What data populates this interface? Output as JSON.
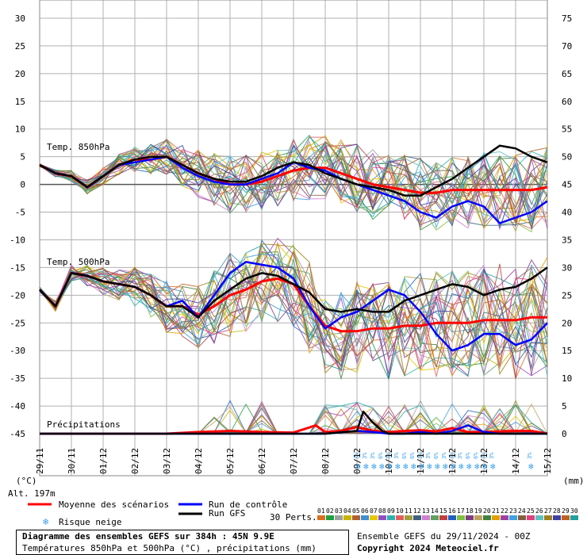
{
  "chart_data": {
    "type": "line",
    "title": "Diagramme des ensembles GEFS sur 384h : 45N 9.9E",
    "subtitle": "Températures 850hPa et 500hPa (°C) , précipitations (mm)",
    "run_info": "Ensemble GEFS du 29/11/2024 - 00Z",
    "copyright": "Copyright 2024 Meteociel.fr",
    "altitude": "Alt. 197m",
    "left_unit": "(°C)",
    "right_unit": "(mm)",
    "left_ticks": [
      30,
      25,
      20,
      15,
      10,
      5,
      0,
      -5,
      -10,
      -15,
      -20,
      -25,
      -30,
      -35,
      -40,
      -45
    ],
    "right_ticks": [
      75,
      70,
      65,
      60,
      55,
      50,
      45,
      40,
      35,
      30,
      25,
      20,
      15,
      10,
      5,
      0
    ],
    "ylim": [
      -45,
      30
    ],
    "x_dates": [
      "29/11",
      "30/11",
      "01/12",
      "02/12",
      "03/12",
      "04/12",
      "05/12",
      "06/12",
      "07/12",
      "08/12",
      "09/12",
      "10/12",
      "11/12",
      "12/12",
      "13/12",
      "14/12",
      "15/12"
    ],
    "labels": {
      "t850": "Temp. 850hPa",
      "t500": "Temp. 500hPa",
      "precip": "Précipitations"
    },
    "legend": {
      "mean": "Moyenne des scénarios",
      "control": "Run de contrôle",
      "gfs": "Run GFS",
      "snow": "Risque neige",
      "perts": "30 Perts.",
      "pert_numbers": [
        "01",
        "02",
        "03",
        "04",
        "05",
        "06",
        "07",
        "08",
        "09",
        "10",
        "11",
        "12",
        "13",
        "14",
        "15",
        "16",
        "17",
        "18",
        "19",
        "20",
        "21",
        "22",
        "23",
        "24",
        "25",
        "26",
        "27",
        "28",
        "29",
        "30"
      ],
      "mean_color": "#ff0000",
      "control_color": "#0000ff",
      "gfs_color": "#000000",
      "snow_color": "#3aa0e8"
    },
    "pert_colors": [
      "#d87020",
      "#20a040",
      "#a0a0a0",
      "#c8b400",
      "#b06030",
      "#4090d0",
      "#e8c800",
      "#9050c0",
      "#30b0b0",
      "#e06060",
      "#a0a040",
      "#406080",
      "#d080d0",
      "#60a060",
      "#c04040",
      "#2060c0",
      "#80c040",
      "#804080",
      "#c0a060",
      "#408040",
      "#e0a000",
      "#a040a0",
      "#40a0e0",
      "#806040",
      "#e04080",
      "#60c0c0",
      "#a08020",
      "#4040a0",
      "#c06020",
      "#20a0a0"
    ],
    "snow_markers": {
      "day_labels": [
        "3%",
        "3%",
        "3%",
        "6%",
        "3%",
        "3%",
        "6%",
        "6%",
        "3%",
        "3%",
        "6%",
        "3%",
        "3%",
        "3%",
        "6%",
        "6%",
        "3%",
        "3%"
      ],
      "day_positions": [
        10.1,
        10.35,
        10.6,
        10.85,
        11.1,
        11.35,
        11.6,
        11.85,
        12.1,
        12.35,
        12.6,
        12.85,
        13.1,
        13.35,
        13.6,
        13.85,
        14.1,
        14.35
      ],
      "late_label": "3%",
      "late_position": 15.55
    },
    "series": [
      {
        "name": "Moyenne des scénarios",
        "group": "850hPa",
        "x": [
          0,
          0.5,
          1,
          1.5,
          2,
          2.5,
          3,
          3.5,
          4,
          4.5,
          5,
          5.5,
          6,
          6.5,
          7,
          7.5,
          8,
          8.5,
          9,
          9.5,
          10,
          10.5,
          11,
          11.5,
          12,
          12.5,
          13,
          13.5,
          14,
          14.5,
          15,
          15.5,
          16
        ],
        "values": [
          3.5,
          2,
          1.5,
          -0.5,
          1.5,
          3.5,
          4.5,
          4.5,
          5,
          3.5,
          2,
          1,
          0,
          0,
          0.5,
          1.5,
          2.5,
          3,
          3,
          2,
          1,
          0,
          -0.5,
          -1,
          -1.5,
          -1.5,
          -1,
          -1,
          -1,
          -1,
          -1,
          -1,
          -0.5
        ]
      },
      {
        "name": "Run de contrôle",
        "group": "850hPa",
        "x": [
          0,
          0.5,
          1,
          1.5,
          2,
          2.5,
          3,
          3.5,
          4,
          4.5,
          5,
          5.5,
          6,
          6.5,
          7,
          7.5,
          8,
          8.5,
          9,
          9.5,
          10,
          10.5,
          11,
          11.5,
          12,
          12.5,
          13,
          13.5,
          14,
          14.5,
          15,
          15.5,
          16
        ],
        "values": [
          3.5,
          2,
          1.5,
          -0.5,
          1.5,
          3.5,
          4,
          4.5,
          5,
          3,
          1.5,
          0.5,
          0,
          0,
          1,
          2,
          4,
          3,
          2.5,
          1,
          0,
          -1,
          -2,
          -3,
          -5,
          -6,
          -4,
          -3,
          -4,
          -7,
          -6,
          -5,
          -3
        ]
      },
      {
        "name": "Run GFS",
        "group": "850hPa",
        "x": [
          0,
          0.5,
          1,
          1.5,
          2,
          2.5,
          3,
          3.5,
          4,
          4.5,
          5,
          5.5,
          6,
          6.5,
          7,
          7.5,
          8,
          8.5,
          9,
          9.5,
          10,
          10.5,
          11,
          11.5,
          12,
          12.5,
          13,
          13.5,
          14,
          14.5,
          15,
          15.5,
          16
        ],
        "values": [
          3.5,
          2,
          1.5,
          -0.5,
          1.5,
          3.5,
          4.5,
          5,
          5,
          3.5,
          2,
          1,
          0.5,
          0.5,
          1.5,
          3,
          4,
          3.5,
          2,
          1,
          0,
          -0.5,
          -1,
          -2,
          -2,
          -0.5,
          1,
          3,
          5,
          7,
          6.5,
          5,
          4
        ]
      },
      {
        "name": "Moyenne des scénarios",
        "group": "500hPa",
        "x": [
          0,
          0.5,
          1,
          1.5,
          2,
          2.5,
          3,
          3.5,
          4,
          4.5,
          5,
          5.5,
          6,
          6.5,
          7,
          7.5,
          8,
          8.5,
          9,
          9.5,
          10,
          10.5,
          11,
          11.5,
          12,
          12.5,
          13,
          13.5,
          14,
          14.5,
          15,
          15.5,
          16
        ],
        "values": [
          -19,
          -22,
          -16,
          -16.5,
          -17.5,
          -18,
          -18.5,
          -20,
          -22,
          -22,
          -23.5,
          -22,
          -20,
          -19,
          -17.5,
          -17,
          -18,
          -22,
          -25.5,
          -26.5,
          -26.5,
          -26,
          -26,
          -25.5,
          -25.5,
          -25,
          -25,
          -25,
          -24.5,
          -24.5,
          -24.5,
          -24,
          -24
        ]
      },
      {
        "name": "Run de contrôle",
        "group": "500hPa",
        "x": [
          0,
          0.5,
          1,
          1.5,
          2,
          2.5,
          3,
          3.5,
          4,
          4.5,
          5,
          5.5,
          6,
          6.5,
          7,
          7.5,
          8,
          8.5,
          9,
          9.5,
          10,
          10.5,
          11,
          11.5,
          12,
          12.5,
          13,
          13.5,
          14,
          14.5,
          15,
          15.5,
          16
        ],
        "values": [
          -19,
          -22,
          -16,
          -16.5,
          -17.5,
          -18,
          -18.5,
          -20,
          -22,
          -21,
          -24,
          -20,
          -16,
          -14,
          -14.5,
          -15,
          -17,
          -22,
          -26,
          -24,
          -23,
          -21,
          -19,
          -20,
          -23,
          -27,
          -30,
          -29,
          -27,
          -27,
          -29,
          -28,
          -25
        ]
      },
      {
        "name": "Run GFS",
        "group": "500hPa",
        "x": [
          0,
          0.5,
          1,
          1.5,
          2,
          2.5,
          3,
          3.5,
          4,
          4.5,
          5,
          5.5,
          6,
          6.5,
          7,
          7.5,
          8,
          8.5,
          9,
          9.5,
          10,
          10.5,
          11,
          11.5,
          12,
          12.5,
          13,
          13.5,
          14,
          14.5,
          15,
          15.5,
          16
        ],
        "values": [
          -19,
          -22,
          -16,
          -16.5,
          -17.5,
          -18,
          -18.5,
          -20,
          -22,
          -22,
          -24,
          -21,
          -19,
          -17,
          -16,
          -16.5,
          -18,
          -19.5,
          -22.5,
          -23,
          -22.5,
          -23,
          -23,
          -21,
          -20,
          -19,
          -18,
          -18.5,
          -20,
          -19,
          -18.5,
          -17,
          -15
        ]
      },
      {
        "name": "Moyenne des scénarios",
        "group": "precip",
        "x": [
          0,
          1,
          2,
          3,
          4,
          5,
          6,
          7,
          8,
          8.7,
          9,
          9.5,
          10,
          10.5,
          11,
          11.5,
          12,
          12.5,
          13,
          13.5,
          14,
          14.5,
          15,
          15.5,
          16
        ],
        "values": [
          0,
          0,
          0,
          0,
          0,
          0.3,
          0.5,
          0.3,
          0.2,
          1.5,
          0.3,
          0.5,
          1.2,
          0.5,
          0.3,
          0.5,
          0.6,
          0.4,
          1.0,
          0.3,
          0.3,
          0.4,
          0.5,
          0.5,
          0
        ]
      },
      {
        "name": "Run de contrôle",
        "group": "precip",
        "x": [
          0,
          1,
          2,
          3,
          4,
          5,
          6,
          7,
          8,
          9,
          10,
          10.5,
          11,
          11.5,
          12,
          12.5,
          13,
          13.5,
          14,
          14.5,
          15,
          15.5,
          16
        ],
        "values": [
          0,
          0,
          0,
          0,
          0,
          0,
          0,
          0,
          0,
          0,
          0.5,
          0.3,
          0,
          0,
          0.3,
          0,
          0.5,
          1.5,
          0.3,
          0,
          0,
          0,
          0
        ]
      },
      {
        "name": "Run GFS",
        "group": "precip",
        "x": [
          0,
          1,
          2,
          3,
          4,
          5,
          6,
          7,
          8,
          9,
          10,
          10.2,
          10.5,
          10.8,
          11,
          11.5,
          12,
          13,
          14,
          15,
          16
        ],
        "values": [
          0,
          0,
          0,
          0,
          0,
          0,
          0,
          0,
          0,
          0,
          0.5,
          4,
          2,
          0.5,
          0,
          0,
          0,
          0,
          0,
          0,
          0
        ]
      }
    ]
  }
}
